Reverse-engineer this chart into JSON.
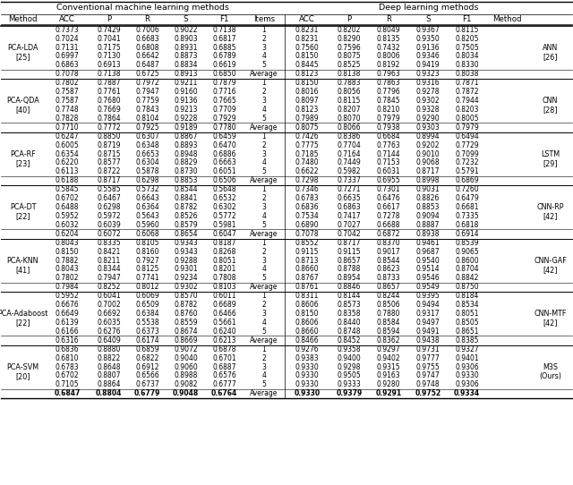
{
  "title_left": "Conventional machine learning methods",
  "title_right": "Deep learning methods",
  "col_headers": [
    "Method",
    "ACC",
    "P",
    "R",
    "S",
    "F1",
    "Items",
    "ACC",
    "P",
    "R",
    "S",
    "F1",
    "Method"
  ],
  "groups": [
    {
      "left_method": "PCA-LDA\n[25]",
      "right_method": "ANN\n[26]",
      "rows": [
        [
          "0.7373",
          "0.7429",
          "0.7006",
          "0.9022",
          "0.7138",
          "1",
          "0.8231",
          "0.8202",
          "0.8049",
          "0.9367",
          "0.8115"
        ],
        [
          "0.7024",
          "0.7041",
          "0.6683",
          "0.8903",
          "0.6817",
          "2",
          "0.8231",
          "0.8290",
          "0.8135",
          "0.9350",
          "0.8205"
        ],
        [
          "0.7131",
          "0.7175",
          "0.6808",
          "0.8931",
          "0.6885",
          "3",
          "0.7560",
          "0.7596",
          "0.7432",
          "0.9136",
          "0.7505"
        ],
        [
          "0.6997",
          "0.7130",
          "0.6642",
          "0.8873",
          "0.6789",
          "4",
          "0.8150",
          "0.8075",
          "0.8006",
          "0.9346",
          "0.8034"
        ],
        [
          "0.6863",
          "0.6913",
          "0.6487",
          "0.8834",
          "0.6619",
          "5",
          "0.8445",
          "0.8525",
          "0.8192",
          "0.9419",
          "0.8330"
        ]
      ],
      "avg": [
        "0.7078",
        "0.7138",
        "0.6725",
        "0.8913",
        "0.6850",
        "Average",
        "0.8123",
        "0.8138",
        "0.7963",
        "0.9323",
        "0.8038"
      ]
    },
    {
      "left_method": "PCA-QDA\n[40]",
      "right_method": "CNN\n[28]",
      "rows": [
        [
          "0.7802",
          "0.7887",
          "0.7972",
          "0.9211",
          "0.7879",
          "1",
          "0.8150",
          "0.7883",
          "0.7863",
          "0.9316",
          "0.7871"
        ],
        [
          "0.7587",
          "0.7761",
          "0.7947",
          "0.9160",
          "0.7716",
          "2",
          "0.8016",
          "0.8056",
          "0.7796",
          "0.9278",
          "0.7872"
        ],
        [
          "0.7587",
          "0.7680",
          "0.7759",
          "0.9136",
          "0.7665",
          "3",
          "0.8097",
          "0.8115",
          "0.7845",
          "0.9302",
          "0.7944"
        ],
        [
          "0.7748",
          "0.7669",
          "0.7843",
          "0.9213",
          "0.7709",
          "4",
          "0.8123",
          "0.8207",
          "0.8210",
          "0.9328",
          "0.8203"
        ],
        [
          "0.7828",
          "0.7864",
          "0.8104",
          "0.9228",
          "0.7929",
          "5",
          "0.7989",
          "0.8070",
          "0.7979",
          "0.9290",
          "0.8005"
        ]
      ],
      "avg": [
        "0.7710",
        "0.7772",
        "0.7925",
        "0.9189",
        "0.7780",
        "Average",
        "0.8075",
        "0.8066",
        "0.7938",
        "0.9303",
        "0.7979"
      ]
    },
    {
      "left_method": "PCA-RF\n[23]",
      "right_method": "LSTM\n[29]",
      "rows": [
        [
          "0.6247",
          "0.8850",
          "0.6307",
          "0.8867",
          "0.6459",
          "1",
          "0.7426",
          "0.8386",
          "0.6684",
          "0.8994",
          "0.6494"
        ],
        [
          "0.6005",
          "0.8719",
          "0.6348",
          "0.8893",
          "0.6470",
          "2",
          "0.7775",
          "0.7704",
          "0.7763",
          "0.9202",
          "0.7729"
        ],
        [
          "0.6354",
          "0.8715",
          "0.6653",
          "0.8948",
          "0.6886",
          "3",
          "0.7185",
          "0.7164",
          "0.7144",
          "0.9010",
          "0.7099"
        ],
        [
          "0.6220",
          "0.8577",
          "0.6304",
          "0.8829",
          "0.6663",
          "4",
          "0.7480",
          "0.7449",
          "0.7153",
          "0.9068",
          "0.7232"
        ],
        [
          "0.6113",
          "0.8722",
          "0.5878",
          "0.8730",
          "0.6051",
          "5",
          "0.6622",
          "0.5982",
          "0.6031",
          "0.8717",
          "0.5791"
        ]
      ],
      "avg": [
        "0.6188",
        "0.8717",
        "0.6298",
        "0.8853",
        "0.6506",
        "Average",
        "0.7298",
        "0.7337",
        "0.6955",
        "0.8998",
        "0.6869"
      ]
    },
    {
      "left_method": "PCA-DT\n[22]",
      "right_method": "CNN-RP\n[42]",
      "rows": [
        [
          "0.5845",
          "0.5585",
          "0.5732",
          "0.8544",
          "0.5648",
          "1",
          "0.7346",
          "0.7271",
          "0.7301",
          "0.9031",
          "0.7260"
        ],
        [
          "0.6702",
          "0.6467",
          "0.6643",
          "0.8841",
          "0.6532",
          "2",
          "0.6783",
          "0.6635",
          "0.6476",
          "0.8826",
          "0.6479"
        ],
        [
          "0.6488",
          "0.6298",
          "0.6364",
          "0.8782",
          "0.6302",
          "3",
          "0.6836",
          "0.6863",
          "0.6617",
          "0.8853",
          "0.6681"
        ],
        [
          "0.5952",
          "0.5972",
          "0.5643",
          "0.8526",
          "0.5772",
          "4",
          "0.7534",
          "0.7417",
          "0.7278",
          "0.9094",
          "0.7335"
        ],
        [
          "0.6032",
          "0.6039",
          "0.5960",
          "0.8579",
          "0.5981",
          "5",
          "0.6890",
          "0.7027",
          "0.6688",
          "0.8887",
          "0.6818"
        ]
      ],
      "avg": [
        "0.6204",
        "0.6072",
        "0.6068",
        "0.8654",
        "0.6047",
        "Average",
        "0.7078",
        "0.7042",
        "0.6872",
        "0.8938",
        "0.6914"
      ]
    },
    {
      "left_method": "PCA-KNN\n[41]",
      "right_method": "CNN-GAF\n[42]",
      "rows": [
        [
          "0.8043",
          "0.8335",
          "0.8105",
          "0.9343",
          "0.8187",
          "1",
          "0.8552",
          "0.8717",
          "0.8370",
          "0.9461",
          "0.8539"
        ],
        [
          "0.8150",
          "0.8421",
          "0.8160",
          "0.9343",
          "0.8268",
          "2",
          "0.9115",
          "0.9115",
          "0.9017",
          "0.9687",
          "0.9065"
        ],
        [
          "0.7882",
          "0.8211",
          "0.7927",
          "0.9288",
          "0.8051",
          "3",
          "0.8713",
          "0.8657",
          "0.8544",
          "0.9540",
          "0.8600"
        ],
        [
          "0.8043",
          "0.8344",
          "0.8125",
          "0.9301",
          "0.8201",
          "4",
          "0.8660",
          "0.8788",
          "0.8623",
          "0.9514",
          "0.8704"
        ],
        [
          "0.7802",
          "0.7947",
          "0.7741",
          "0.9234",
          "0.7808",
          "5",
          "0.8767",
          "0.8954",
          "0.8733",
          "0.9546",
          "0.8842"
        ]
      ],
      "avg": [
        "0.7984",
        "0.8252",
        "0.8012",
        "0.9302",
        "0.8103",
        "Average",
        "0.8761",
        "0.8846",
        "0.8657",
        "0.9549",
        "0.8750"
      ]
    },
    {
      "left_method": "PCA-Adaboost\n[22]",
      "right_method": "CNN-MTF\n[42]",
      "rows": [
        [
          "0.5952",
          "0.6041",
          "0.6069",
          "0.8570",
          "0.6011",
          "1",
          "0.8311",
          "0.8144",
          "0.8244",
          "0.9395",
          "0.8184"
        ],
        [
          "0.6676",
          "0.7002",
          "0.6509",
          "0.8782",
          "0.6689",
          "2",
          "0.8606",
          "0.8573",
          "0.8506",
          "0.9494",
          "0.8534"
        ],
        [
          "0.6649",
          "0.6692",
          "0.6384",
          "0.8760",
          "0.6466",
          "3",
          "0.8150",
          "0.8358",
          "0.7880",
          "0.9317",
          "0.8051"
        ],
        [
          "0.6139",
          "0.6035",
          "0.5538",
          "0.8559",
          "0.5661",
          "4",
          "0.8606",
          "0.8440",
          "0.8584",
          "0.9497",
          "0.8505"
        ],
        [
          "0.6166",
          "0.6276",
          "0.6373",
          "0.8674",
          "0.6240",
          "5",
          "0.8660",
          "0.8748",
          "0.8594",
          "0.9491",
          "0.8651"
        ]
      ],
      "avg": [
        "0.6316",
        "0.6409",
        "0.6174",
        "0.8669",
        "0.6213",
        "Average",
        "0.8466",
        "0.8452",
        "0.8362",
        "0.9438",
        "0.8385"
      ]
    },
    {
      "left_method": "PCA-SVM\n[20]",
      "right_method": "M3S\n(Ours)",
      "rows": [
        [
          "0.6836",
          "0.8880",
          "0.6859",
          "0.9072",
          "0.6878",
          "1",
          "0.9276",
          "0.9358",
          "0.9297",
          "0.9731",
          "0.9327"
        ],
        [
          "0.6810",
          "0.8822",
          "0.6822",
          "0.9040",
          "0.6701",
          "2",
          "0.9383",
          "0.9400",
          "0.9402",
          "0.9777",
          "0.9401"
        ],
        [
          "0.6783",
          "0.8648",
          "0.6912",
          "0.9060",
          "0.6887",
          "3",
          "0.9330",
          "0.9298",
          "0.9315",
          "0.9755",
          "0.9306"
        ],
        [
          "0.6702",
          "0.8807",
          "0.6566",
          "0.8988",
          "0.6576",
          "4",
          "0.9330",
          "0.9505",
          "0.9163",
          "0.9747",
          "0.9330"
        ],
        [
          "0.7105",
          "0.8864",
          "0.6737",
          "0.9082",
          "0.6777",
          "5",
          "0.9330",
          "0.9333",
          "0.9280",
          "0.9748",
          "0.9306"
        ]
      ],
      "avg": [
        "0.6847",
        "0.8804",
        "0.6779",
        "0.9048",
        "0.6764",
        "Average",
        "0.9330",
        "0.9379",
        "0.9291",
        "0.9752",
        "0.9334"
      ],
      "avg_bold": true
    }
  ],
  "figsize": [
    6.4,
    5.42
  ],
  "dpi": 100
}
